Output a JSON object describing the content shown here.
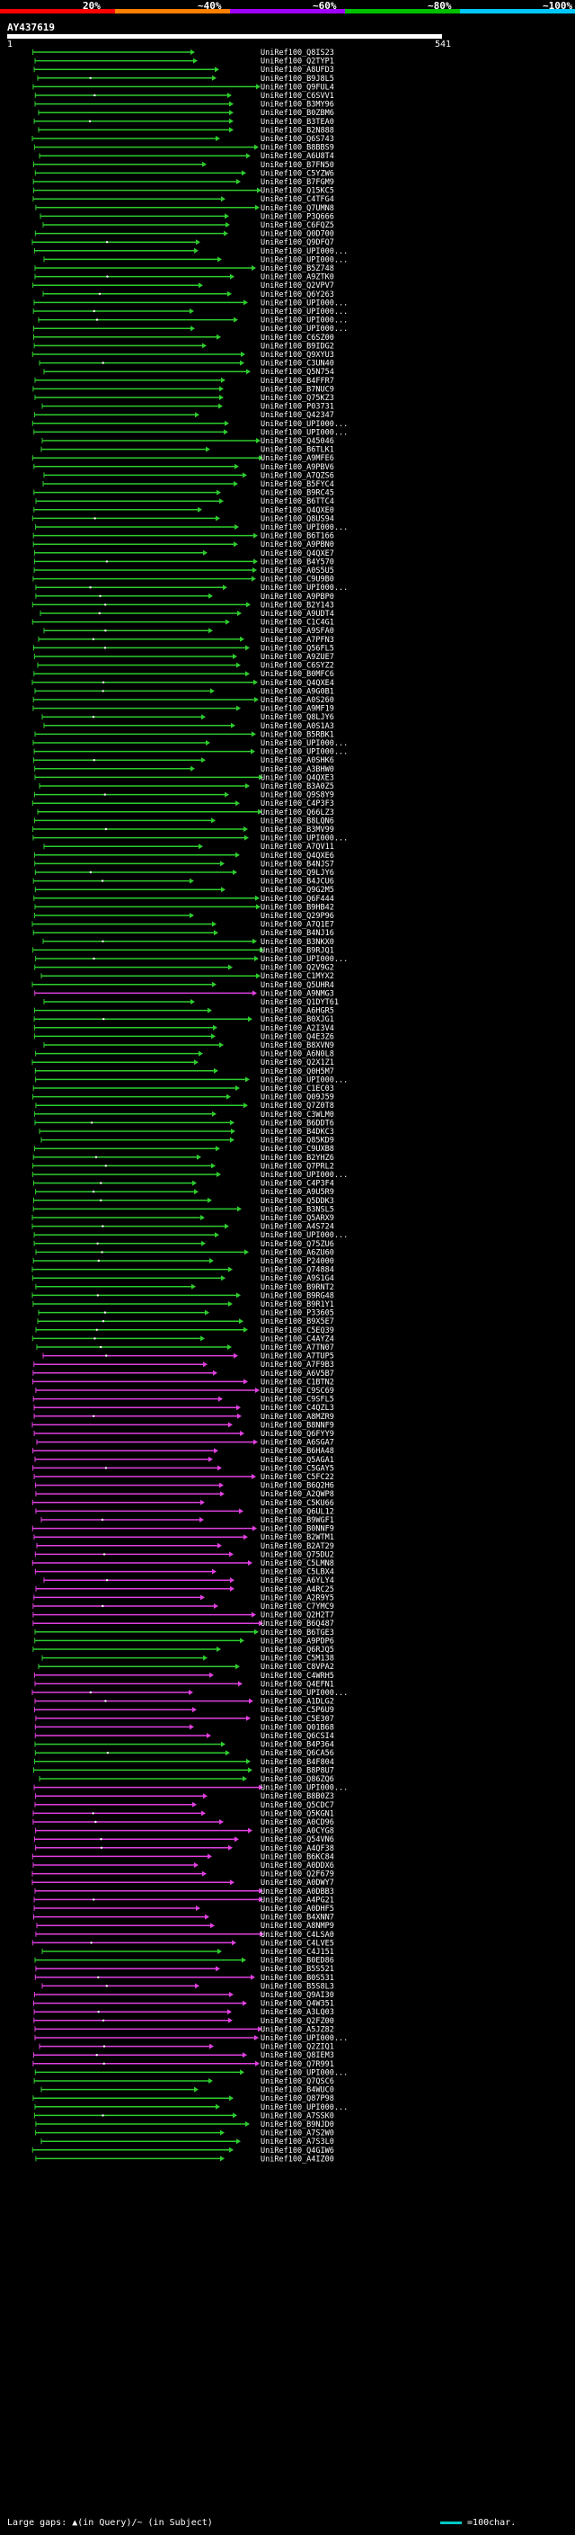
{
  "scale": {
    "labels": [
      "20%",
      "~40%",
      "~60%",
      "~80%",
      "~100%"
    ],
    "colors": [
      "#ff0000",
      "#ff8000",
      "#a000ff",
      "#00c000",
      "#00c8ff"
    ]
  },
  "query": {
    "id": "AY437619",
    "start": "1",
    "end": "541"
  },
  "colors": {
    "green": "#2ecc2e",
    "magenta": "#e040e0",
    "cyan": "#00c8c8"
  },
  "hits": [
    {
      "label": "UniRef100_Q8IS23",
      "c": "g"
    },
    {
      "label": "UniRef100_Q2TYP1",
      "c": "g"
    },
    {
      "label": "UniRef100_A8UFD3",
      "c": "g"
    },
    {
      "label": "UniRef100_B9J8L5",
      "c": "g"
    },
    {
      "label": "UniRef100_Q9FUL4",
      "c": "g"
    },
    {
      "label": "UniRef100_C6SVV1",
      "c": "g"
    },
    {
      "label": "UniRef100_B3MY96",
      "c": "g"
    },
    {
      "label": "UniRef100_B0ZBM6",
      "c": "g"
    },
    {
      "label": "UniRef100_B3TEA0",
      "c": "g"
    },
    {
      "label": "UniRef100_B2N888",
      "c": "g"
    },
    {
      "label": "UniRef100_Q6S743",
      "c": "g"
    },
    {
      "label": "UniRef100_B8BBS9",
      "c": "g"
    },
    {
      "label": "UniRef100_A6U8T4",
      "c": "g"
    },
    {
      "label": "UniRef100_B7FN50",
      "c": "g"
    },
    {
      "label": "UniRef100_C5YZW6",
      "c": "g"
    },
    {
      "label": "UniRef100_B7FGM9",
      "c": "g"
    },
    {
      "label": "UniRef100_Q15KC5",
      "c": "g"
    },
    {
      "label": "UniRef100_C4TFG4",
      "c": "g"
    },
    {
      "label": "UniRef100_Q7UMN8",
      "c": "g"
    },
    {
      "label": "UniRef100_P3Q666",
      "c": "g"
    },
    {
      "label": "UniRef100_C6FQZ5",
      "c": "g"
    },
    {
      "label": "UniRef100_Q0D700",
      "c": "g"
    },
    {
      "label": "UniRef100_Q9DFQ7",
      "c": "g"
    },
    {
      "label": "UniRef100_UPI000...",
      "c": "g"
    },
    {
      "label": "UniRef100_UPI000...",
      "c": "g"
    },
    {
      "label": "UniRef100_B5Z748",
      "c": "g"
    },
    {
      "label": "UniRef100_A9ZTK0",
      "c": "g"
    },
    {
      "label": "UniRef100_Q2VPV7",
      "c": "g"
    },
    {
      "label": "UniRef100_Q6Y263",
      "c": "g"
    },
    {
      "label": "UniRef100_UPI000...",
      "c": "g"
    },
    {
      "label": "UniRef100_UPI000...",
      "c": "g"
    },
    {
      "label": "UniRef100_UPI000...",
      "c": "g"
    },
    {
      "label": "UniRef100_UPI000...",
      "c": "g"
    },
    {
      "label": "UniRef100_C6SZ00",
      "c": "g"
    },
    {
      "label": "UniRef100_B9IDG2",
      "c": "g"
    },
    {
      "label": "UniRef100_Q9XYU3",
      "c": "g"
    },
    {
      "label": "UniRef100_C3UN40",
      "c": "g"
    },
    {
      "label": "UniRef100_Q5N754",
      "c": "g"
    },
    {
      "label": "UniRef100_B4FFR7",
      "c": "g"
    },
    {
      "label": "UniRef100_B7NUC9",
      "c": "g"
    },
    {
      "label": "UniRef100_Q75KZ3",
      "c": "g"
    },
    {
      "label": "UniRef100_P03731",
      "c": "g"
    },
    {
      "label": "UniRef100_Q42347",
      "c": "g"
    },
    {
      "label": "UniRef100_UPI000...",
      "c": "g"
    },
    {
      "label": "UniRef100_UPI000...",
      "c": "g"
    },
    {
      "label": "UniRef100_Q45046",
      "c": "g"
    },
    {
      "label": "UniRef100_B6TLK1",
      "c": "g"
    },
    {
      "label": "UniRef100_A9MFE6",
      "c": "g"
    },
    {
      "label": "UniRef100_A9PBV6",
      "c": "g"
    },
    {
      "label": "UniRef100_A7QZS6",
      "c": "g"
    },
    {
      "label": "UniRef100_B5FYC4",
      "c": "g"
    },
    {
      "label": "UniRef100_B9RC45",
      "c": "g"
    },
    {
      "label": "UniRef100_B6TTC4",
      "c": "g"
    },
    {
      "label": "UniRef100_Q4QXE0",
      "c": "g"
    },
    {
      "label": "UniRef100_Q8US94",
      "c": "g"
    },
    {
      "label": "UniRef100_UPI000...",
      "c": "g"
    },
    {
      "label": "UniRef100_B6T166",
      "c": "g"
    },
    {
      "label": "UniRef100_A9PBN0",
      "c": "g"
    },
    {
      "label": "UniRef100_Q4QXE7",
      "c": "g"
    },
    {
      "label": "UniRef100_B4Y570",
      "c": "g"
    },
    {
      "label": "UniRef100_A0S5U5",
      "c": "g"
    },
    {
      "label": "UniRef100_C9U9B0",
      "c": "g"
    },
    {
      "label": "UniRef100_UPI000...",
      "c": "g"
    },
    {
      "label": "UniRef100_A9PBP0",
      "c": "g"
    },
    {
      "label": "UniRef100_B2Y143",
      "c": "g"
    },
    {
      "label": "UniRef100_A9UDT4",
      "c": "g"
    },
    {
      "label": "UniRef100_C1C4G1",
      "c": "g"
    },
    {
      "label": "UniRef100_A9SFA0",
      "c": "g"
    },
    {
      "label": "UniRef100_A7PFN3",
      "c": "g"
    },
    {
      "label": "UniRef100_Q56FL5",
      "c": "g"
    },
    {
      "label": "UniRef100_A9ZUE7",
      "c": "g"
    },
    {
      "label": "UniRef100_C6SYZ2",
      "c": "g"
    },
    {
      "label": "UniRef100_B0MFC6",
      "c": "g"
    },
    {
      "label": "UniRef100_Q4QXE4",
      "c": "g"
    },
    {
      "label": "UniRef100_A9G0B1",
      "c": "g"
    },
    {
      "label": "UniRef100_A0S260",
      "c": "g"
    },
    {
      "label": "UniRef100_A9MF19",
      "c": "g"
    },
    {
      "label": "UniRef100_Q8LJY6",
      "c": "g"
    },
    {
      "label": "UniRef100_A0S1A3",
      "c": "g"
    },
    {
      "label": "UniRef100_B5RBK1",
      "c": "g"
    },
    {
      "label": "UniRef100_UPI000...",
      "c": "g"
    },
    {
      "label": "UniRef100_UPI000...",
      "c": "g"
    },
    {
      "label": "UniRef100_A0SHK6",
      "c": "g"
    },
    {
      "label": "UniRef100_A3BHW0",
      "c": "g"
    },
    {
      "label": "UniRef100_Q4QXE3",
      "c": "g"
    },
    {
      "label": "UniRef100_B3A0Z5",
      "c": "g"
    },
    {
      "label": "UniRef100_Q9S8Y9",
      "c": "g"
    },
    {
      "label": "UniRef100_C4P3F3",
      "c": "g"
    },
    {
      "label": "UniRef100_Q66LZ3",
      "c": "g"
    },
    {
      "label": "UniRef100_B8LQN6",
      "c": "g"
    },
    {
      "label": "UniRef100_B3MV99",
      "c": "g"
    },
    {
      "label": "UniRef100_UPI000...",
      "c": "g"
    },
    {
      "label": "UniRef100_A7QV11",
      "c": "g"
    },
    {
      "label": "UniRef100_Q4QXE6",
      "c": "g"
    },
    {
      "label": "UniRef100_B4NJS7",
      "c": "g"
    },
    {
      "label": "UniRef100_Q9LJY6",
      "c": "g"
    },
    {
      "label": "UniRef100_B4JCU6",
      "c": "g"
    },
    {
      "label": "UniRef100_Q9G2M5",
      "c": "g"
    },
    {
      "label": "UniRef100_Q6F444",
      "c": "g"
    },
    {
      "label": "UniRef100_B9HB42",
      "c": "g"
    },
    {
      "label": "UniRef100_Q29P96",
      "c": "g"
    },
    {
      "label": "UniRef100_A7Q1E7",
      "c": "g"
    },
    {
      "label": "UniRef100_B4NJ16",
      "c": "g"
    },
    {
      "label": "UniRef100_B3NKX0",
      "c": "g"
    },
    {
      "label": "UniRef100_B9RJQ1",
      "c": "g"
    },
    {
      "label": "UniRef100_UPI000...",
      "c": "g"
    },
    {
      "label": "UniRef100_Q2V9G2",
      "c": "g"
    },
    {
      "label": "UniRef100_C1MYX2",
      "c": "g"
    },
    {
      "label": "UniRef100_Q5UHR4",
      "c": "g"
    },
    {
      "label": "UniRef100_A9NMG3",
      "c": "m"
    },
    {
      "label": "UniRef100_Q1DYT61",
      "c": "g"
    },
    {
      "label": "UniRef100_A6HGR5",
      "c": "g"
    },
    {
      "label": "UniRef100_B0XJG1",
      "c": "g"
    },
    {
      "label": "UniRef100_A2I3V4",
      "c": "g"
    },
    {
      "label": "UniRef100_Q4E3Z6",
      "c": "g"
    },
    {
      "label": "UniRef100_B8XVN9",
      "c": "g"
    },
    {
      "label": "UniRef100_A6N0L8",
      "c": "g"
    },
    {
      "label": "UniRef100_Q2X1Z1",
      "c": "g"
    },
    {
      "label": "UniRef100_Q0H5M7",
      "c": "g"
    },
    {
      "label": "UniRef100_UPI000...",
      "c": "g"
    },
    {
      "label": "UniRef100_C1EC03",
      "c": "g"
    },
    {
      "label": "UniRef100_Q09J59",
      "c": "g"
    },
    {
      "label": "UniRef100_Q7Z0T8",
      "c": "g"
    },
    {
      "label": "UniRef100_C3WLM0",
      "c": "g"
    },
    {
      "label": "UniRef100_B6DDT6",
      "c": "g"
    },
    {
      "label": "UniRef100_B4DKC3",
      "c": "g"
    },
    {
      "label": "UniRef100_Q85KD9",
      "c": "g"
    },
    {
      "label": "UniRef100_C9UXB8",
      "c": "g"
    },
    {
      "label": "UniRef100_B2YHZ6",
      "c": "g"
    },
    {
      "label": "UniRef100_Q7PRL2",
      "c": "g"
    },
    {
      "label": "UniRef100_UPI000...",
      "c": "g"
    },
    {
      "label": "UniRef100_C4P3F4",
      "c": "g"
    },
    {
      "label": "UniRef100_A9U5R9",
      "c": "g"
    },
    {
      "label": "UniRef100_Q5DDK3",
      "c": "g"
    },
    {
      "label": "UniRef100_B3NSL5",
      "c": "g"
    },
    {
      "label": "UniRef100_Q5ARX9",
      "c": "g"
    },
    {
      "label": "UniRef100_A4S724",
      "c": "g"
    },
    {
      "label": "UniRef100_UPI000...",
      "c": "g"
    },
    {
      "label": "UniRef100_Q75ZU6",
      "c": "g"
    },
    {
      "label": "UniRef100_A6ZU60",
      "c": "g"
    },
    {
      "label": "UniRef100_P24000",
      "c": "g"
    },
    {
      "label": "UniRef100_Q74884",
      "c": "g"
    },
    {
      "label": "UniRef100_A9S1G4",
      "c": "g"
    },
    {
      "label": "UniRef100_B9RNT2",
      "c": "g"
    },
    {
      "label": "UniRef100_B9RG48",
      "c": "g"
    },
    {
      "label": "UniRef100_B9R1Y1",
      "c": "g"
    },
    {
      "label": "UniRef100_P33605",
      "c": "g"
    },
    {
      "label": "UniRef100_B9X5E7",
      "c": "g"
    },
    {
      "label": "UniRef100_C5EQ39",
      "c": "g"
    },
    {
      "label": "UniRef100_C4AYZ4",
      "c": "g"
    },
    {
      "label": "UniRef100_A7TN07",
      "c": "g"
    },
    {
      "label": "UniRef100_A7TUP5",
      "c": "m"
    },
    {
      "label": "UniRef100_A7F9B3",
      "c": "m"
    },
    {
      "label": "UniRef100_A6V5B7",
      "c": "m"
    },
    {
      "label": "UniRef100_C1BTN2",
      "c": "m"
    },
    {
      "label": "UniRef100_C9SC69",
      "c": "m"
    },
    {
      "label": "UniRef100_C9SFL5",
      "c": "m"
    },
    {
      "label": "UniRef100_C4QZL3",
      "c": "m"
    },
    {
      "label": "UniRef100_A8MZR9",
      "c": "m"
    },
    {
      "label": "UniRef100_B8NNF9",
      "c": "m"
    },
    {
      "label": "UniRef100_Q6FYY9",
      "c": "m"
    },
    {
      "label": "UniRef100_A6SGA7",
      "c": "m"
    },
    {
      "label": "UniRef100_B6HA48",
      "c": "m"
    },
    {
      "label": "UniRef100_Q5AGA1",
      "c": "m"
    },
    {
      "label": "UniRef100_C5GAY5",
      "c": "m"
    },
    {
      "label": "UniRef100_C5FC22",
      "c": "m"
    },
    {
      "label": "UniRef100_B6Q2H6",
      "c": "m"
    },
    {
      "label": "UniRef100_A2QWP8",
      "c": "m"
    },
    {
      "label": "UniRef100_C5KU66",
      "c": "m"
    },
    {
      "label": "UniRef100_Q6UL12",
      "c": "m"
    },
    {
      "label": "UniRef100_B9WGF1",
      "c": "m"
    },
    {
      "label": "UniRef100_B0NNF9",
      "c": "m"
    },
    {
      "label": "UniRef100_B2WTM1",
      "c": "m"
    },
    {
      "label": "UniRef100_B2AT29",
      "c": "m"
    },
    {
      "label": "UniRef100_Q75DU2",
      "c": "m"
    },
    {
      "label": "UniRef100_C5LMN8",
      "c": "m"
    },
    {
      "label": "UniRef100_C5LBX4",
      "c": "m"
    },
    {
      "label": "UniRef100_A6YLY4",
      "c": "m"
    },
    {
      "label": "UniRef100_A4RC25",
      "c": "m"
    },
    {
      "label": "UniRef100_A2R9Y5",
      "c": "m"
    },
    {
      "label": "UniRef100_C7YMC9",
      "c": "m"
    },
    {
      "label": "UniRef100_Q2H2T7",
      "c": "m"
    },
    {
      "label": "UniRef100_B6Q487",
      "c": "m"
    },
    {
      "label": "UniRef100_B6TGE3",
      "c": "g"
    },
    {
      "label": "UniRef100_A9PDP6",
      "c": "g"
    },
    {
      "label": "UniRef100_Q6RJQ5",
      "c": "g"
    },
    {
      "label": "UniRef100_C5M138",
      "c": "g"
    },
    {
      "label": "UniRef100_C8VPA2",
      "c": "g"
    },
    {
      "label": "UniRef100_C4WRH5",
      "c": "m"
    },
    {
      "label": "UniRef100_Q4EFN1",
      "c": "m"
    },
    {
      "label": "UniRef100_UPI000...",
      "c": "m"
    },
    {
      "label": "UniRef100_A1DLG2",
      "c": "m"
    },
    {
      "label": "UniRef100_C5P6U9",
      "c": "m"
    },
    {
      "label": "UniRef100_C5E307",
      "c": "m"
    },
    {
      "label": "UniRef100_Q01B68",
      "c": "m"
    },
    {
      "label": "UniRef100_Q6CSI4",
      "c": "m"
    },
    {
      "label": "UniRef100_B4P364",
      "c": "g"
    },
    {
      "label": "UniRef100_Q6CA56",
      "c": "g"
    },
    {
      "label": "UniRef100_B4F804",
      "c": "g"
    },
    {
      "label": "UniRef100_B8P8U7",
      "c": "g"
    },
    {
      "label": "UniRef100_Q86ZQ6",
      "c": "g"
    },
    {
      "label": "UniRef100_UPI000...",
      "c": "m"
    },
    {
      "label": "UniRef100_B8B0Z3",
      "c": "m"
    },
    {
      "label": "UniRef100_Q5CDC7",
      "c": "m"
    },
    {
      "label": "UniRef100_Q5KGN1",
      "c": "m"
    },
    {
      "label": "UniRef100_A0CD96",
      "c": "m"
    },
    {
      "label": "UniRef100_A0CYG8",
      "c": "m"
    },
    {
      "label": "UniRef100_Q54VN6",
      "c": "m"
    },
    {
      "label": "UniRef100_A4QF38",
      "c": "m"
    },
    {
      "label": "UniRef100_B6KC84",
      "c": "m"
    },
    {
      "label": "UniRef100_A0DDX6",
      "c": "m"
    },
    {
      "label": "UniRef100_Q2F679",
      "c": "m"
    },
    {
      "label": "UniRef100_A0DWY7",
      "c": "m"
    },
    {
      "label": "UniRef100_A0DBB3",
      "c": "m"
    },
    {
      "label": "UniRef100_A4PG21",
      "c": "m"
    },
    {
      "label": "UniRef100_A0DHF5",
      "c": "m"
    },
    {
      "label": "UniRef100_B4XNN7",
      "c": "m"
    },
    {
      "label": "UniRef100_A8NMP9",
      "c": "m"
    },
    {
      "label": "UniRef100_C4LSA0",
      "c": "m"
    },
    {
      "label": "UniRef100_C4LVE5",
      "c": "m"
    },
    {
      "label": "UniRef100_C4J151",
      "c": "g"
    },
    {
      "label": "UniRef100_B0ED86",
      "c": "g"
    },
    {
      "label": "UniRef100_B5S521",
      "c": "m"
    },
    {
      "label": "UniRef100_B0S531",
      "c": "m"
    },
    {
      "label": "UniRef100_B5S8L3",
      "c": "m"
    },
    {
      "label": "UniRef100_Q9AI30",
      "c": "m"
    },
    {
      "label": "UniRef100_Q4W351",
      "c": "m"
    },
    {
      "label": "UniRef100_A3LQ03",
      "c": "m"
    },
    {
      "label": "UniRef100_Q2FZ00",
      "c": "m"
    },
    {
      "label": "UniRef100_A5JZ82",
      "c": "m"
    },
    {
      "label": "UniRef100_UPI000...",
      "c": "m"
    },
    {
      "label": "UniRef100_Q2ZIQ1",
      "c": "m"
    },
    {
      "label": "UniRef100_Q8IEM3",
      "c": "m"
    },
    {
      "label": "UniRef100_Q7R991",
      "c": "m"
    },
    {
      "label": "UniRef100_UPI000...",
      "c": "g"
    },
    {
      "label": "UniRef100_Q7QSC6",
      "c": "g"
    },
    {
      "label": "UniRef100_B4WUC0",
      "c": "g"
    },
    {
      "label": "UniRef100_Q87P98",
      "c": "g"
    },
    {
      "label": "UniRef100_UPI000...",
      "c": "g"
    },
    {
      "label": "UniRef100_A7SSK0",
      "c": "g"
    },
    {
      "label": "UniRef100_B9NJD0",
      "c": "g"
    },
    {
      "label": "UniRef100_A7S2W0",
      "c": "g"
    },
    {
      "label": "UniRef100_A7S3L0",
      "c": "g"
    },
    {
      "label": "UniRef100_Q4GIW6",
      "c": "g"
    },
    {
      "label": "UniRef100_A4IZ00",
      "c": "g"
    }
  ],
  "legend": {
    "text": "Large gaps: ▲(in Query)/~ (in Subject)",
    "scale_text": "=100char."
  }
}
